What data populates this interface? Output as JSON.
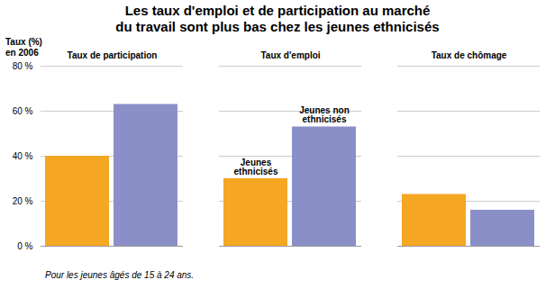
{
  "chart_data": {
    "type": "bar",
    "title": "Les taux d'emploi et de participation au marché\ndu travail sont plus bas chez les jeunes ethnicisés",
    "categories": [
      "Taux de participation",
      "Taux d'emploi",
      "Taux de chômage"
    ],
    "series": [
      {
        "name": "Jeunes\nethnicisés",
        "color": "#F5A623",
        "values": [
          40,
          30,
          23
        ]
      },
      {
        "name": "Jeunes non\nethnicisés",
        "color": "#8B8FC7",
        "values": [
          63,
          53,
          16
        ]
      }
    ],
    "ylabel": "Taux (%)\nen 2006",
    "ylim": [
      0,
      80
    ],
    "yticks": [
      {
        "value": 0,
        "label": "0 %"
      },
      {
        "value": 20,
        "label": "20 %"
      },
      {
        "value": 40,
        "label": "40 %"
      },
      {
        "value": 60,
        "label": "60 %"
      },
      {
        "value": 80,
        "label": "80 %"
      }
    ],
    "grid": true,
    "annotations": [
      {
        "text": "Jeunes\nethnicisés",
        "x": "Taux d'emploi"
      },
      {
        "text": "Jeunes non\nethnicisés",
        "x": "Taux d'emploi"
      }
    ],
    "footnote": "Pour les jeunes âgés de 15 à 24 ans."
  }
}
